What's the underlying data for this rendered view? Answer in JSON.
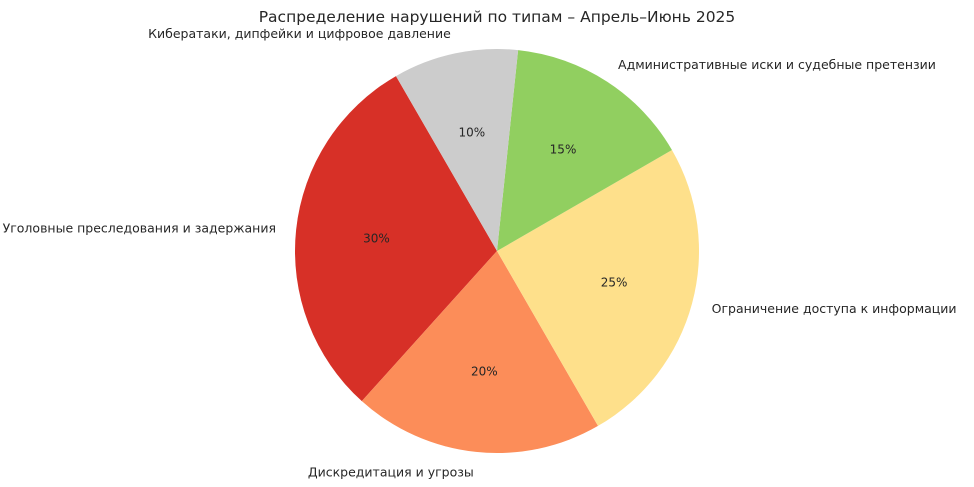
{
  "chart_data": {
    "type": "pie",
    "title": "Распределение нарушений по типам – Апрель–Июнь 2025",
    "categories": [
      " Уголовные преследования и задержания",
      " Дискредитация и угрозы",
      " Ограничение доступа к информации",
      " Административные иски и судебные претензии",
      " Кибератаки, дипфейки и цифровое давление"
    ],
    "values": [
      30,
      20,
      25,
      15,
      10
    ],
    "percent_labels": [
      "30%",
      "20%",
      "25%",
      "15%",
      "10%"
    ],
    "colors": [
      "#d73027",
      "#fc8d59",
      "#fee08b",
      "#91cf60",
      "#cccccc"
    ],
    "start_angle": 120,
    "direction": "counterclockwise",
    "legend": "none"
  }
}
